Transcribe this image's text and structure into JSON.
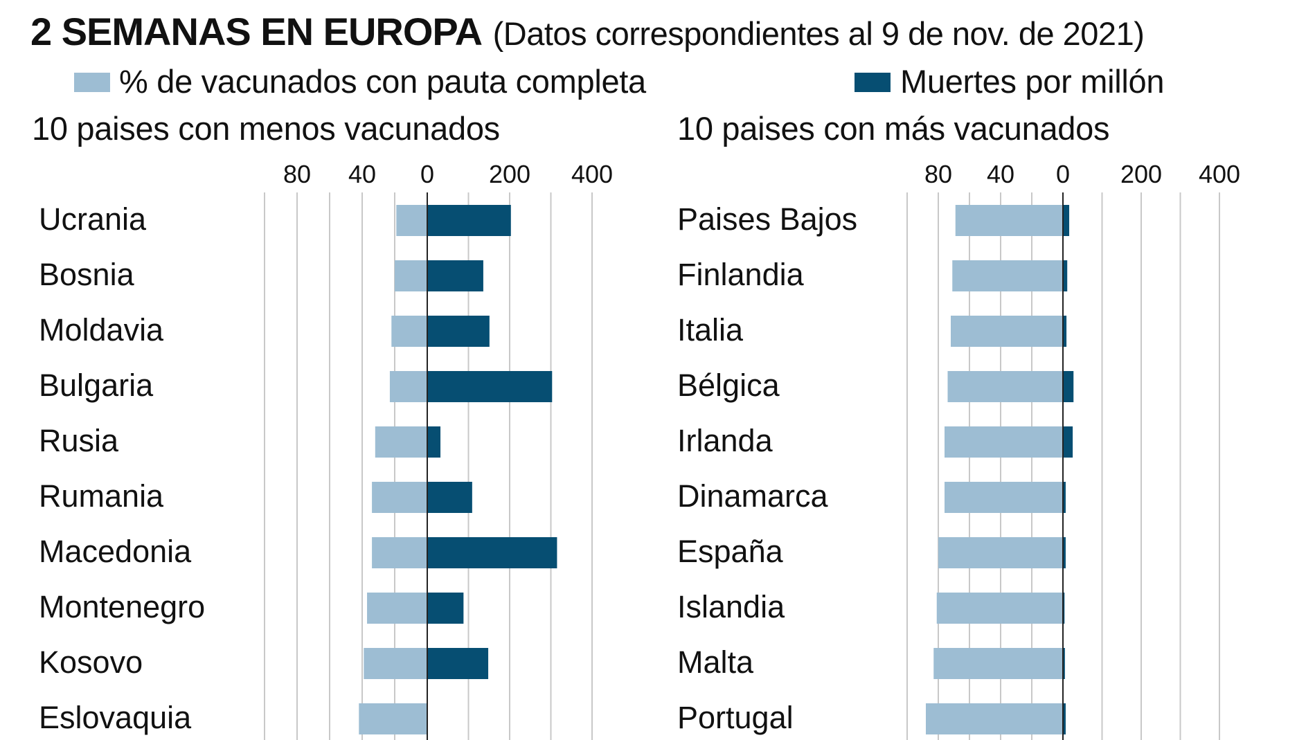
{
  "header": {
    "title": "2 SEMANAS EN EUROPA",
    "subtitle": "(Datos correspondientes al 9 de nov. de 2021)"
  },
  "legend": [
    {
      "label": "% de vacunados con pauta completa",
      "color": "#9dbdd3"
    },
    {
      "label": "Muertes por millón",
      "color": "#064e72"
    }
  ],
  "colors": {
    "vaccinated": "#9dbdd3",
    "deaths": "#064e72",
    "grid": "#c8c8c8",
    "zero_axis": "#222222"
  },
  "chart_data": [
    {
      "type": "bar",
      "orientation": "diverging-horizontal",
      "title": "10 paises con menos vacunados",
      "left_axis": {
        "series": "% de vacunados con pauta completa",
        "ticks": [
          80,
          40,
          0
        ],
        "range": [
          0,
          100
        ],
        "grid_step": 20
      },
      "right_axis": {
        "series": "Muertes por millón",
        "ticks": [
          200,
          400
        ],
        "range": [
          0,
          400
        ],
        "grid_step": 100
      },
      "grid": true,
      "categories": [
        "Ucrania",
        "Bosnia",
        "Moldavia",
        "Bulgaria",
        "Rusia",
        "Rumania",
        "Macedonia",
        "Montenegro",
        "Kosovo",
        "Eslovaquia"
      ],
      "series": [
        {
          "name": "% de vacunados con pauta completa",
          "side": "left",
          "values": [
            19,
            20,
            22,
            23,
            32,
            34,
            34,
            37,
            39,
            42
          ]
        },
        {
          "name": "Muertes por millón",
          "side": "right",
          "values": [
            203,
            136,
            151,
            303,
            32,
            109,
            315,
            88,
            148,
            0
          ]
        }
      ]
    },
    {
      "type": "bar",
      "orientation": "diverging-horizontal",
      "title": "10 paises con más vacunados",
      "left_axis": {
        "series": "% de vacunados con pauta completa",
        "ticks": [
          80,
          40,
          0
        ],
        "range": [
          0,
          100
        ],
        "grid_step": 20
      },
      "right_axis": {
        "series": "Muertes por millón",
        "ticks": [
          200,
          400
        ],
        "range": [
          0,
          400
        ],
        "grid_step": 100
      },
      "grid": true,
      "categories": [
        "Paises Bajos",
        "Finlandia",
        "Italia",
        "Bélgica",
        "Irlanda",
        "Dinamarca",
        "España",
        "Islandia",
        "Malta",
        "Portugal"
      ],
      "series": [
        {
          "name": "% de vacunados con pauta completa",
          "side": "left",
          "values": [
            69,
            71,
            72,
            74,
            76,
            76,
            80,
            81,
            83,
            88
          ]
        },
        {
          "name": "Muertes por millón",
          "side": "right",
          "values": [
            16,
            11,
            9,
            27,
            25,
            7,
            7,
            4,
            5,
            7
          ]
        }
      ]
    }
  ]
}
